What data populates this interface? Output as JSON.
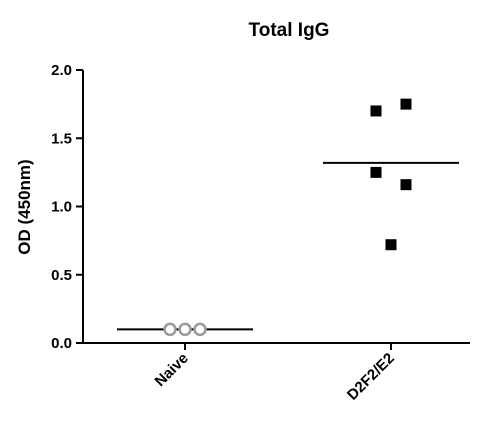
{
  "chart_data": {
    "type": "scatter",
    "title": "Total IgG",
    "ylabel": "OD (450nm)",
    "xlabel": "",
    "ylim": [
      0,
      2.0
    ],
    "yticks": [
      "0.0",
      "0.5",
      "1.0",
      "1.5",
      "2.0"
    ],
    "categories": [
      "Naive",
      "D2F2/E2"
    ],
    "grid": false,
    "series": [
      {
        "category": "Naive",
        "marker": "open-circle",
        "color": "#9a9a9a",
        "points": [
          {
            "offset": -1,
            "value": 0.1
          },
          {
            "offset": 0,
            "value": 0.1
          },
          {
            "offset": 1,
            "value": 0.1
          }
        ],
        "mean": 0.1
      },
      {
        "category": "D2F2/E2",
        "marker": "filled-square",
        "color": "#000000",
        "points": [
          {
            "offset": -1,
            "value": 1.7
          },
          {
            "offset": 1,
            "value": 1.75
          },
          {
            "offset": -1,
            "value": 1.25
          },
          {
            "offset": 1,
            "value": 1.16
          },
          {
            "offset": 0,
            "value": 0.72
          }
        ],
        "mean": 1.32
      }
    ]
  }
}
